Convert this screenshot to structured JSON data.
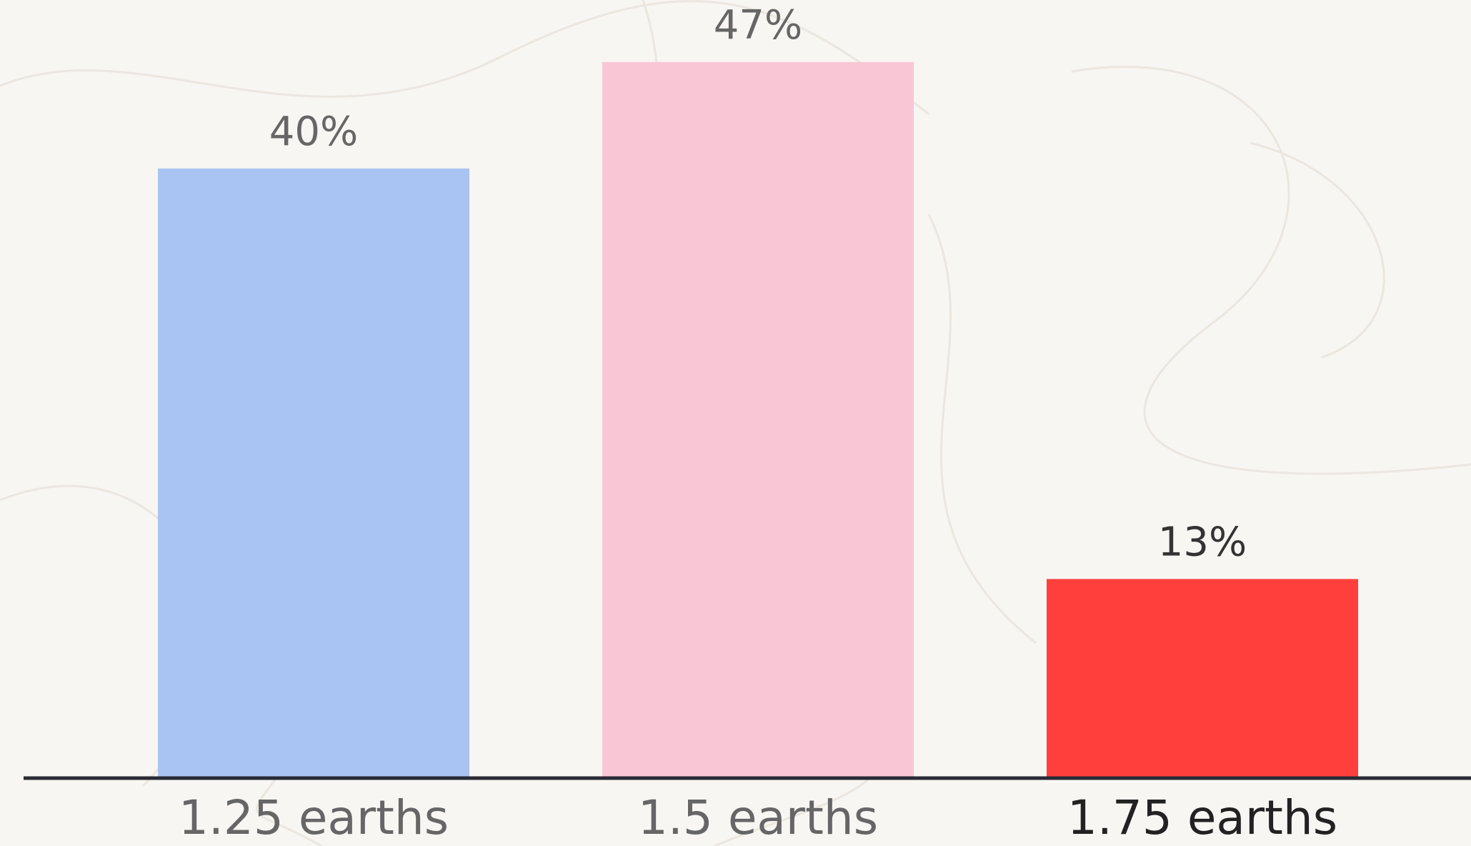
{
  "chart_data": {
    "type": "bar",
    "categories": [
      "1.25 earths",
      "1.5 earths",
      "1.75 earths"
    ],
    "values": [
      40,
      47,
      13
    ],
    "value_labels": [
      "40%",
      "47%",
      "13%"
    ],
    "colors": [
      "#a9c3f3",
      "#f9c6d6",
      "#ff3f3b"
    ],
    "ylim": [
      0,
      50
    ]
  }
}
